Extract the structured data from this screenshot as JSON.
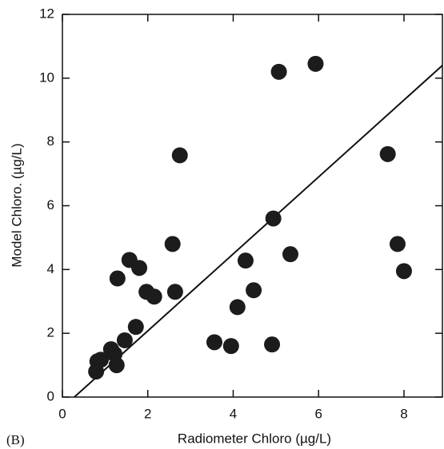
{
  "chart_data": {
    "type": "scatter",
    "panel_label": "(B)",
    "x_label": "Radiometer Chloro (µg/L)",
    "y_label": "Model Chloro. (µg/L)",
    "xlim": [
      0,
      8.9
    ],
    "ylim": [
      0,
      12
    ],
    "xticks": [
      0,
      2,
      4,
      6,
      8
    ],
    "yticks": [
      0,
      2,
      4,
      6,
      8,
      10,
      12
    ],
    "color": "#1c1c1c",
    "x": [
      0.79,
      0.82,
      0.9,
      1.14,
      1.22,
      1.27,
      1.46,
      1.72,
      1.29,
      1.57,
      1.8,
      1.97,
      2.15,
      2.58,
      2.64,
      2.75,
      3.56,
      3.95,
      4.1,
      4.29,
      4.48,
      4.91,
      4.94,
      5.07,
      5.34,
      5.93,
      7.62,
      7.85,
      8.0
    ],
    "y": [
      0.8,
      1.12,
      1.17,
      1.5,
      1.35,
      1.0,
      1.78,
      2.2,
      3.72,
      4.3,
      4.05,
      3.3,
      3.15,
      4.8,
      3.3,
      7.58,
      1.72,
      1.6,
      2.82,
      4.28,
      3.35,
      1.65,
      5.6,
      10.2,
      4.48,
      10.45,
      7.62,
      4.8,
      3.95
    ],
    "fit_line": {
      "x": [
        0.28,
        8.9
      ],
      "y": [
        0,
        10.4
      ]
    }
  }
}
